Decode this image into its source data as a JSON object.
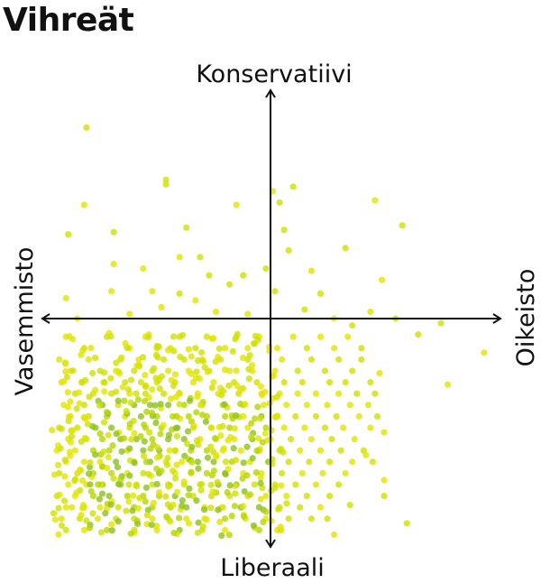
{
  "title": "Vihreät",
  "chart_data": {
    "type": "scatter",
    "title": "Vihreät",
    "axis_labels": {
      "top": "Konservatiivi",
      "bottom": "Liberaali",
      "left": "Vasemmisto",
      "right": "Oikeisto"
    },
    "xlim": [
      -1,
      1
    ],
    "ylim": [
      -1,
      1
    ],
    "grid": false,
    "point_colors": [
      "#e2e400",
      "#cfe000",
      "#b8d400",
      "#8cc21c"
    ],
    "outliers": [
      [
        -0.81,
        0.84
      ],
      [
        -0.46,
        0.61
      ],
      [
        -0.46,
        0.59
      ],
      [
        -0.82,
        0.5
      ],
      [
        -0.89,
        0.37
      ],
      [
        -0.69,
        0.38
      ],
      [
        -0.37,
        0.4
      ],
      [
        -0.15,
        0.5
      ],
      [
        0.01,
        0.56
      ],
      [
        0.1,
        0.58
      ],
      [
        0.46,
        0.52
      ],
      [
        0.58,
        0.41
      ],
      [
        0.33,
        0.31
      ],
      [
        0.04,
        0.51
      ],
      [
        0.06,
        0.39
      ],
      [
        -0.69,
        0.24
      ],
      [
        -0.56,
        0.22
      ],
      [
        -0.31,
        0.27
      ],
      [
        0.18,
        0.21
      ],
      [
        0.49,
        0.17
      ],
      [
        -0.9,
        0.09
      ],
      [
        -0.7,
        0.12
      ],
      [
        0.75,
        -0.02
      ],
      [
        0.94,
        -0.15
      ],
      [
        0.78,
        -0.29
      ],
      [
        0.65,
        -0.07
      ],
      [
        0.6,
        -0.9
      ],
      [
        0.5,
        -0.71
      ],
      [
        0.48,
        -0.24
      ],
      [
        0.44,
        0.03
      ],
      [
        0.22,
        0.11
      ],
      [
        -0.12,
        0.19
      ],
      [
        -0.4,
        0.11
      ],
      [
        -0.48,
        0.05
      ],
      [
        -0.24,
        0.03
      ],
      [
        -0.02,
        0.22
      ],
      [
        0.28,
        -0.95
      ],
      [
        -0.62,
        0.02
      ],
      [
        -0.33,
        0.08
      ],
      [
        -0.18,
        0.15
      ],
      [
        0.02,
        0.12
      ],
      [
        0.15,
        0.04
      ],
      [
        0.28,
        0.0
      ],
      [
        0.36,
        -0.03
      ],
      [
        -0.85,
        0.0
      ],
      [
        -0.52,
        0.12
      ],
      [
        -0.27,
        0.19
      ],
      [
        0.08,
        0.3
      ],
      [
        -0.4,
        0.27
      ],
      [
        -0.1,
        0.02
      ],
      [
        0.55,
        0.0
      ],
      [
        0.5,
        -0.5
      ],
      [
        0.42,
        -0.6
      ],
      [
        0.5,
        -0.78
      ],
      [
        0.25,
        -0.88
      ],
      [
        0.35,
        -0.82
      ]
    ],
    "cloud_rows": [
      {
        "y": -0.08,
        "x": [
          -0.9,
          -0.72,
          -0.55,
          -0.4,
          -0.28,
          -0.15,
          -0.05,
          0.1,
          0.22,
          0.34
        ]
      },
      {
        "y": -0.13,
        "x": [
          -0.82,
          -0.62,
          -0.5,
          -0.44,
          -0.33,
          -0.2,
          -0.1,
          0.03,
          0.16,
          0.28,
          0.4
        ]
      },
      {
        "y": -0.18,
        "x": [
          -0.93,
          -0.8,
          -0.66,
          -0.58,
          -0.47,
          -0.38,
          -0.3,
          -0.22,
          -0.1,
          0.05,
          0.18,
          0.3,
          0.4
        ]
      },
      {
        "y": -0.23,
        "x": [
          -0.88,
          -0.75,
          -0.68,
          -0.6,
          -0.52,
          -0.45,
          -0.36,
          -0.27,
          -0.18,
          -0.08,
          0.02,
          0.12,
          0.24,
          0.36
        ]
      },
      {
        "y": -0.28,
        "x": [
          -0.92,
          -0.83,
          -0.73,
          -0.64,
          -0.57,
          -0.5,
          -0.42,
          -0.34,
          -0.25,
          -0.16,
          -0.06,
          0.06,
          0.14,
          0.26,
          0.33,
          0.44
        ]
      },
      {
        "y": -0.33,
        "x": [
          -0.86,
          -0.78,
          -0.7,
          -0.62,
          -0.55,
          -0.47,
          -0.4,
          -0.32,
          -0.23,
          -0.14,
          -0.04,
          0.04,
          0.12,
          0.2,
          0.3,
          0.38,
          0.46
        ]
      },
      {
        "y": -0.38,
        "x": [
          -0.91,
          -0.82,
          -0.74,
          -0.67,
          -0.6,
          -0.53,
          -0.45,
          -0.38,
          -0.3,
          -0.21,
          -0.12,
          -0.03,
          0.07,
          0.16,
          0.25,
          0.35,
          0.43
        ]
      },
      {
        "y": -0.43,
        "x": [
          -0.88,
          -0.8,
          -0.72,
          -0.64,
          -0.57,
          -0.5,
          -0.43,
          -0.36,
          -0.28,
          -0.2,
          -0.12,
          -0.04,
          0.03,
          0.11,
          0.2,
          0.29,
          0.39,
          0.47
        ]
      },
      {
        "y": -0.48,
        "x": [
          -0.93,
          -0.85,
          -0.77,
          -0.7,
          -0.62,
          -0.55,
          -0.48,
          -0.41,
          -0.34,
          -0.26,
          -0.18,
          -0.1,
          -0.02,
          0.06,
          0.15,
          0.24,
          0.32,
          0.44
        ]
      },
      {
        "y": -0.53,
        "x": [
          -0.89,
          -0.81,
          -0.74,
          -0.66,
          -0.59,
          -0.52,
          -0.45,
          -0.38,
          -0.31,
          -0.24,
          -0.16,
          -0.08,
          0.0,
          0.09,
          0.18,
          0.27,
          0.37
        ]
      },
      {
        "y": -0.58,
        "x": [
          -0.94,
          -0.86,
          -0.78,
          -0.71,
          -0.63,
          -0.56,
          -0.49,
          -0.42,
          -0.35,
          -0.28,
          -0.21,
          -0.13,
          -0.05,
          0.04,
          0.13,
          0.22,
          0.31,
          0.41
        ]
      },
      {
        "y": -0.63,
        "x": [
          -0.9,
          -0.82,
          -0.75,
          -0.68,
          -0.6,
          -0.53,
          -0.46,
          -0.39,
          -0.32,
          -0.25,
          -0.17,
          -0.09,
          -0.01,
          0.08,
          0.17,
          0.26,
          0.36,
          0.45
        ]
      },
      {
        "y": -0.68,
        "x": [
          -0.93,
          -0.85,
          -0.78,
          -0.7,
          -0.63,
          -0.56,
          -0.49,
          -0.42,
          -0.35,
          -0.28,
          -0.2,
          -0.12,
          -0.04,
          0.05,
          0.14,
          0.23,
          0.33
        ]
      },
      {
        "y": -0.73,
        "x": [
          -0.89,
          -0.81,
          -0.74,
          -0.66,
          -0.59,
          -0.52,
          -0.45,
          -0.38,
          -0.31,
          -0.23,
          -0.15,
          -0.07,
          0.02,
          0.11,
          0.2,
          0.3
        ]
      },
      {
        "y": -0.78,
        "x": [
          -0.94,
          -0.86,
          -0.78,
          -0.71,
          -0.63,
          -0.56,
          -0.49,
          -0.42,
          -0.34,
          -0.26,
          -0.18,
          -0.1,
          -0.02,
          0.07,
          0.16,
          0.26
        ]
      },
      {
        "y": -0.83,
        "x": [
          -0.9,
          -0.82,
          -0.75,
          -0.67,
          -0.6,
          -0.52,
          -0.44,
          -0.37,
          -0.29,
          -0.21,
          -0.13,
          -0.05,
          0.04,
          0.13,
          0.22
        ]
      },
      {
        "y": -0.88,
        "x": [
          -0.92,
          -0.84,
          -0.76,
          -0.68,
          -0.6,
          -0.52,
          -0.45,
          -0.37,
          -0.29,
          -0.2,
          -0.11,
          -0.02,
          0.08,
          0.18
        ]
      },
      {
        "y": -0.93,
        "x": [
          -0.9,
          -0.82,
          -0.72,
          -0.6,
          -0.5,
          -0.4,
          -0.3,
          -0.2,
          -0.05,
          0.03
        ]
      }
    ]
  }
}
